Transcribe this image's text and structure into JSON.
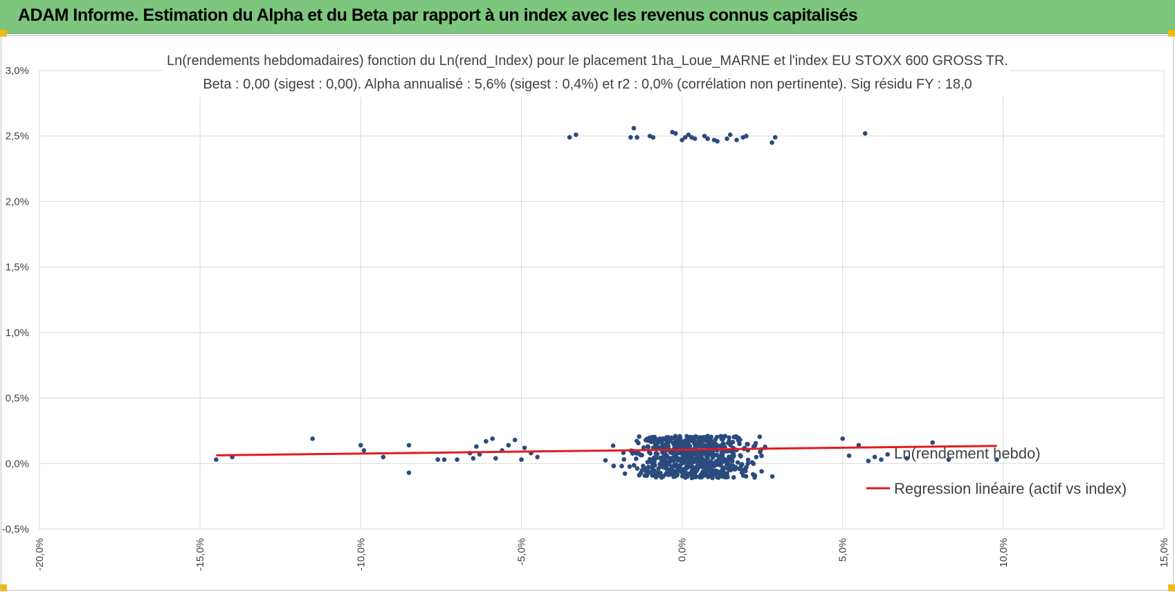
{
  "header": {
    "title": "ADAM Informe. Estimation du Alpha et du Beta par rapport à un index avec les revenus connus capitalisés"
  },
  "colors": {
    "header_bg": "#7dc67e",
    "points": "#2b4a7e",
    "regression": "#e31a1c",
    "grid": "#d9d9d9",
    "handles": "#f5b800"
  },
  "chart_data": {
    "type": "scatter",
    "title": "Ln(rendements hebdomadaires) fonction du Ln(rend_Index) pour le placement 1ha_Loue_MARNE et l'index EU STOXX 600 GROSS TR.",
    "subtitle": "Beta : 0,00 (sigest : 0,00).  Alpha annualisé : 5,6% (sigest : 0,4%) et r2 : 0,0% (corrélation non pertinente). Sig résidu FY : 18,0",
    "xlim": [
      -20,
      15
    ],
    "ylim": [
      -0.5,
      3.0
    ],
    "x_ticks": [
      "-20,0%",
      "-15,0%",
      "-10,0%",
      "-5,0%",
      "0,0%",
      "5,0%",
      "10,0%",
      "15,0%"
    ],
    "y_ticks": [
      "3,0%",
      "2,5%",
      "2,0%",
      "1,5%",
      "1,0%",
      "0,5%",
      "0,0%",
      "-0,5%"
    ],
    "grid": true,
    "legend_position": "right",
    "series": [
      {
        "name": "Ln(rendement hebdo)",
        "kind": "scatter",
        "points_high": [
          [
            -3.5,
            2.49
          ],
          [
            -3.3,
            2.51
          ],
          [
            -1.6,
            2.49
          ],
          [
            -1.5,
            2.56
          ],
          [
            -1.4,
            2.49
          ],
          [
            -1.0,
            2.5
          ],
          [
            -0.9,
            2.49
          ],
          [
            -0.3,
            2.53
          ],
          [
            -0.2,
            2.52
          ],
          [
            0.0,
            2.47
          ],
          [
            0.1,
            2.49
          ],
          [
            0.2,
            2.51
          ],
          [
            0.3,
            2.49
          ],
          [
            0.4,
            2.48
          ],
          [
            0.7,
            2.5
          ],
          [
            0.8,
            2.48
          ],
          [
            1.0,
            2.47
          ],
          [
            1.1,
            2.46
          ],
          [
            1.4,
            2.48
          ],
          [
            1.5,
            2.51
          ],
          [
            1.7,
            2.47
          ],
          [
            1.9,
            2.49
          ],
          [
            2.0,
            2.5
          ],
          [
            2.8,
            2.45
          ],
          [
            2.9,
            2.49
          ],
          [
            5.7,
            2.52
          ]
        ],
        "points_tail": [
          [
            -14.5,
            0.03
          ],
          [
            -14.0,
            0.05
          ],
          [
            -11.5,
            0.19
          ],
          [
            -10.0,
            0.14
          ],
          [
            -9.9,
            0.1
          ],
          [
            -9.3,
            0.05
          ],
          [
            -8.5,
            0.14
          ],
          [
            -8.5,
            -0.07
          ],
          [
            -7.6,
            0.03
          ],
          [
            -7.4,
            0.03
          ],
          [
            -7.0,
            0.03
          ],
          [
            -6.6,
            0.08
          ],
          [
            -6.5,
            0.04
          ],
          [
            -6.4,
            0.13
          ],
          [
            -6.3,
            0.07
          ],
          [
            -6.1,
            0.17
          ],
          [
            -5.9,
            0.19
          ],
          [
            -5.8,
            0.04
          ],
          [
            -5.6,
            0.1
          ],
          [
            -5.4,
            0.14
          ],
          [
            -5.2,
            0.18
          ],
          [
            -5.0,
            0.03
          ],
          [
            -4.9,
            0.12
          ],
          [
            -4.7,
            0.08
          ],
          [
            -4.5,
            0.05
          ],
          [
            5.0,
            0.19
          ],
          [
            5.2,
            0.06
          ],
          [
            5.5,
            0.14
          ],
          [
            5.8,
            0.02
          ],
          [
            6.0,
            0.05
          ],
          [
            6.2,
            0.03
          ],
          [
            6.4,
            0.07
          ],
          [
            7.0,
            0.04
          ],
          [
            7.8,
            0.16
          ],
          [
            8.3,
            0.03
          ],
          [
            9.8,
            0.03
          ]
        ],
        "cluster": {
          "x_center": 0.3,
          "x_spread": 2.0,
          "y_min": -0.11,
          "y_max": 0.21,
          "count": 700
        }
      },
      {
        "name": "Regression linéaire (actif vs index)",
        "kind": "line",
        "points": [
          [
            -14.5,
            0.063
          ],
          [
            9.8,
            0.135
          ]
        ]
      }
    ]
  }
}
